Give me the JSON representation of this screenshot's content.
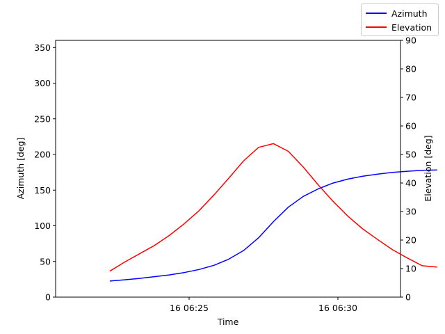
{
  "chart_data": {
    "type": "line",
    "xlabel": "Time",
    "ylabel_left": "Azimuth [deg]",
    "ylabel_right": "Elevation [deg]",
    "x_ticks": [
      "16 06:25",
      "16 06:30"
    ],
    "x": [
      "06:22:20",
      "06:22:50",
      "06:23:20",
      "06:23:50",
      "06:24:20",
      "06:24:50",
      "06:25:20",
      "06:25:50",
      "06:26:20",
      "06:26:50",
      "06:27:20",
      "06:27:50",
      "06:28:20",
      "06:28:50",
      "06:29:20",
      "06:29:50",
      "06:30:20",
      "06:30:50",
      "06:31:20",
      "06:31:50",
      "06:32:20",
      "06:32:50",
      "06:33:20"
    ],
    "y_left_lim": [
      0,
      360
    ],
    "y_left_ticks": [
      0,
      50,
      100,
      150,
      200,
      250,
      300,
      350
    ],
    "y_right_lim": [
      0,
      90
    ],
    "y_right_ticks": [
      0,
      10,
      20,
      30,
      40,
      50,
      60,
      70,
      80,
      90
    ],
    "legend_position": "top-right",
    "series": [
      {
        "name": "Azimuth",
        "axis": "left",
        "color": "#0000ff",
        "values": [
          22.5,
          24.3,
          26.2,
          28.7,
          31.1,
          34.4,
          38.7,
          44.6,
          53.3,
          65.5,
          83.2,
          105.9,
          126.1,
          141.2,
          151.7,
          159.9,
          165.5,
          169.6,
          172.5,
          174.8,
          176.5,
          177.8,
          178.3
        ]
      },
      {
        "name": "Elevation",
        "axis": "right",
        "color": "#ff0000",
        "values": [
          9.1,
          12.3,
          15.2,
          18.1,
          21.6,
          25.7,
          30.3,
          35.8,
          41.7,
          47.8,
          52.5,
          53.8,
          51.1,
          45.6,
          39.4,
          33.6,
          28.4,
          23.9,
          20.2,
          16.6,
          13.7,
          11.0,
          10.5
        ]
      }
    ]
  }
}
